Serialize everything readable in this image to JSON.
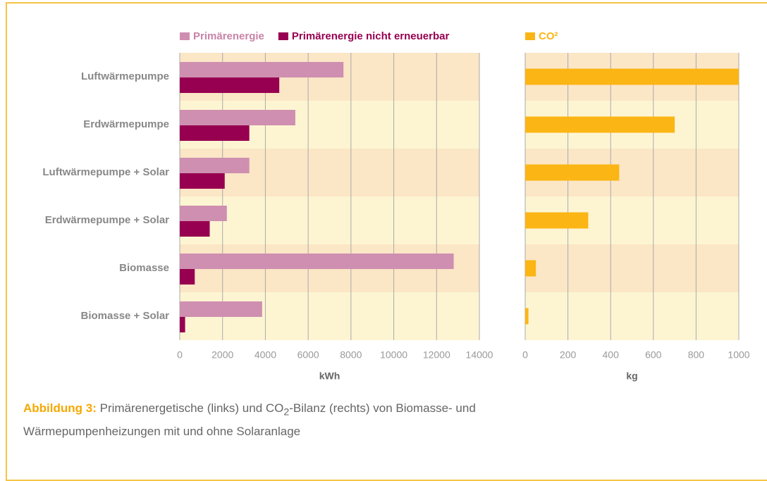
{
  "chart_data": [
    {
      "type": "hbar",
      "legend": "top",
      "grid": true,
      "categories": [
        "Luftwärmepumpe",
        "Erdwärmepumpe",
        "Luftwärmepumpe + Solar",
        "Erdwärmepumpe + Solar",
        "Biomasse",
        "Biomasse + Solar"
      ],
      "series": [
        {
          "name": "Primärenergie",
          "color": "#cf8fb0",
          "values": [
            7650,
            5400,
            3250,
            2200,
            12800,
            3850
          ]
        },
        {
          "name": "Primärenergie nicht erneuerbar",
          "color": "#970050",
          "values": [
            4650,
            3250,
            2100,
            1400,
            700,
            250
          ]
        }
      ],
      "xlim": [
        0,
        14000
      ],
      "xticks": [
        0,
        2000,
        4000,
        6000,
        8000,
        10000,
        12000,
        14000
      ],
      "xlabel": "kWh"
    },
    {
      "type": "hbar",
      "legend": "top",
      "grid": true,
      "series": [
        {
          "name": "CO²",
          "color": "#fbb514",
          "values": [
            1000,
            700,
            440,
            295,
            50,
            15
          ]
        }
      ],
      "xlim": [
        0,
        1000
      ],
      "xticks": [
        0,
        200,
        400,
        600,
        800,
        1000
      ],
      "xlabel": "kg"
    }
  ],
  "caption": {
    "label": "Abbildung 3:",
    "parts": [
      "Primärenergetische (links) und CO",
      "2",
      "-Bilanz (rechts) von Biomasse- und Wärmepumpenheizungen mit und ohne Solaranlage"
    ]
  }
}
